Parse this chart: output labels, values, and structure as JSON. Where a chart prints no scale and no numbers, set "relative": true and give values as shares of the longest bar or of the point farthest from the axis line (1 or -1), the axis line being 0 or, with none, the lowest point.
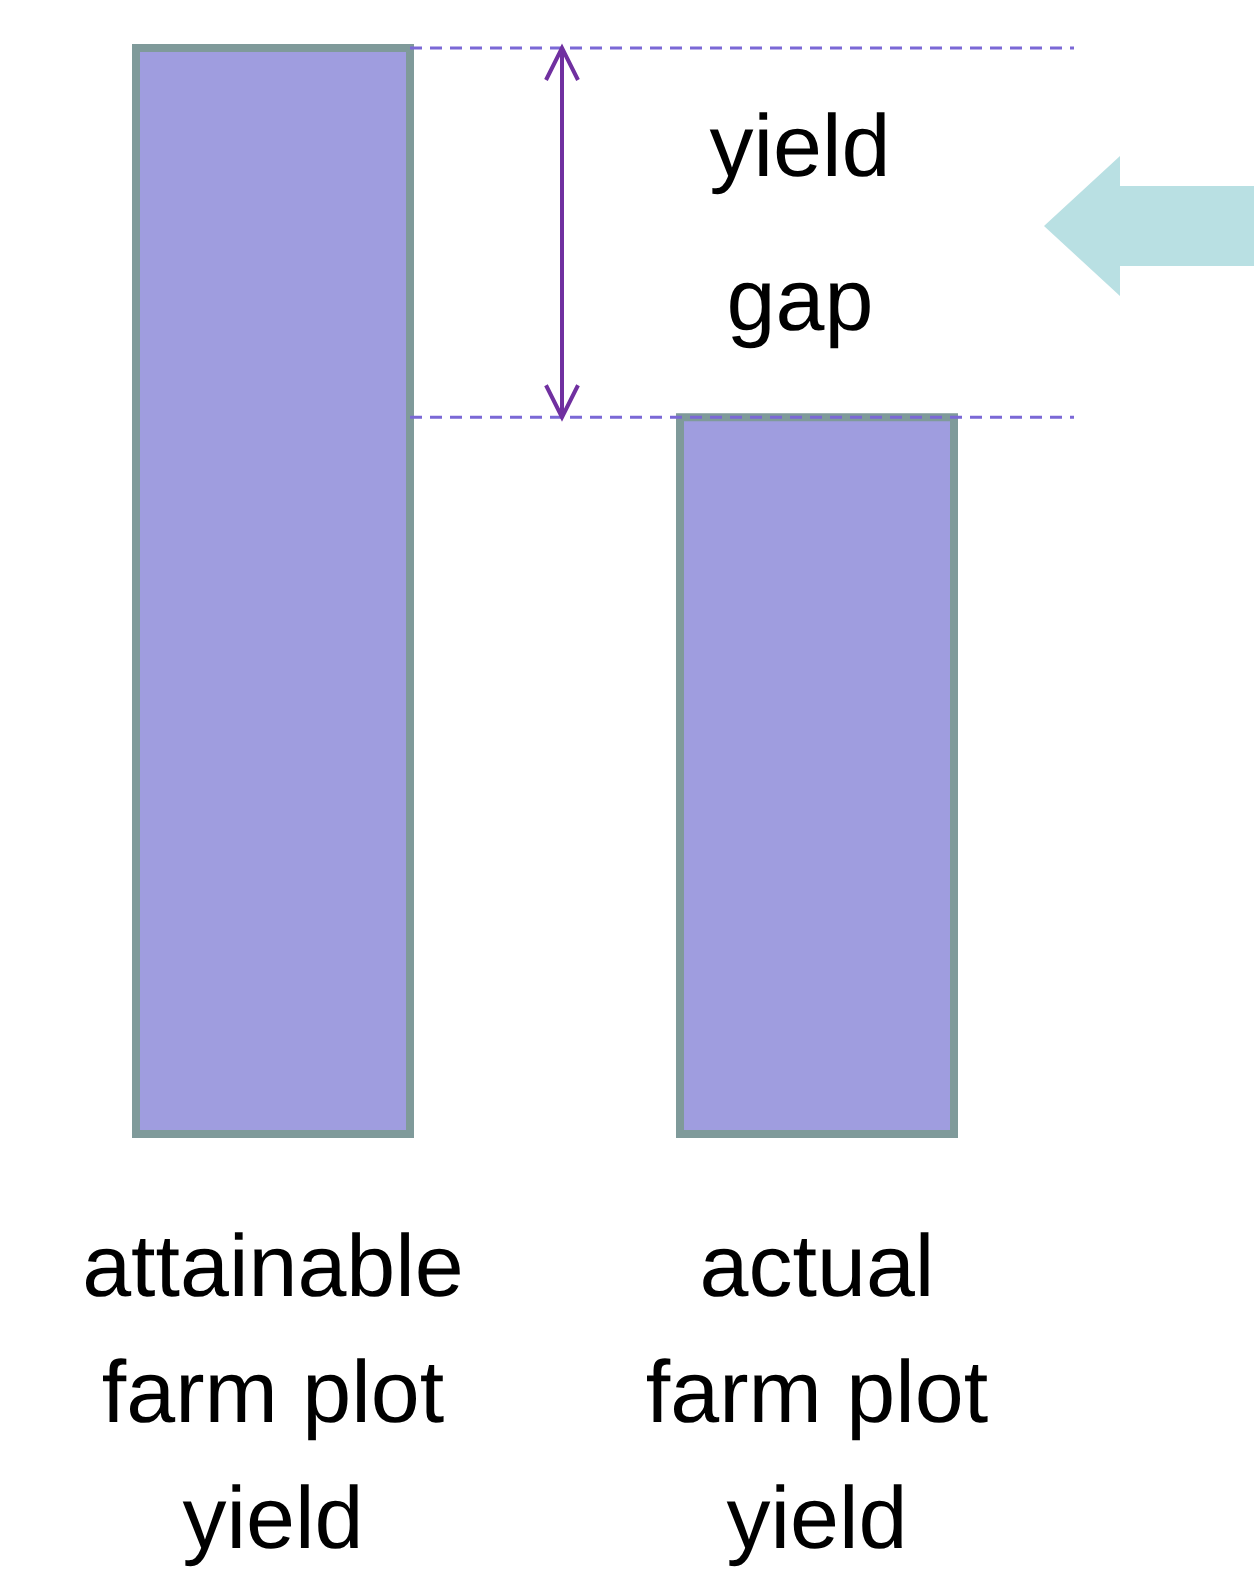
{
  "chart_data": {
    "type": "bar",
    "relative": true,
    "categories": [
      "attainable farm plot yield",
      "actual farm plot yield"
    ],
    "values": [
      1,
      0.66
    ],
    "color": "#9f9ddf",
    "ref_lines": [
      {
        "axis": "y",
        "value": 1,
        "color": "#7b68d6",
        "line_style": "dashed"
      },
      {
        "axis": "y",
        "value": 0.66,
        "color": "#7b68d6",
        "line_style": "dashed"
      }
    ],
    "annotations": [
      "yield gap"
    ]
  }
}
